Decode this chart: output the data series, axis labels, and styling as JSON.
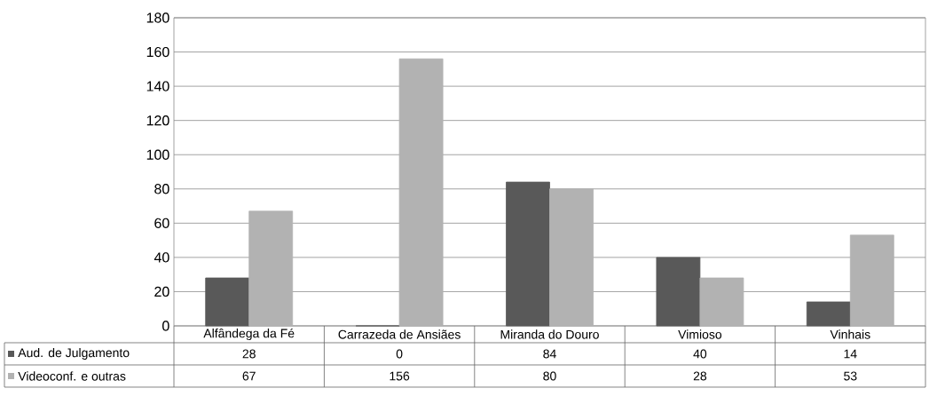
{
  "chart_data": {
    "type": "bar",
    "categories": [
      "Alfândega da Fé",
      "Carrazeda de Ansiães",
      "Miranda do Douro",
      "Vimioso",
      "Vinhais"
    ],
    "series": [
      {
        "name": "Aud. de Julgamento",
        "color": "#595959",
        "values": [
          28,
          0,
          84,
          40,
          14
        ]
      },
      {
        "name": "Videoconf. e outras",
        "color": "#b2b2b2",
        "values": [
          67,
          156,
          80,
          28,
          53
        ]
      }
    ],
    "ylim": [
      0,
      180
    ],
    "yticks": [
      0,
      20,
      40,
      60,
      80,
      100,
      120,
      140,
      160,
      180
    ],
    "grid": "y",
    "data_labels": true,
    "legend": "bottom left"
  }
}
